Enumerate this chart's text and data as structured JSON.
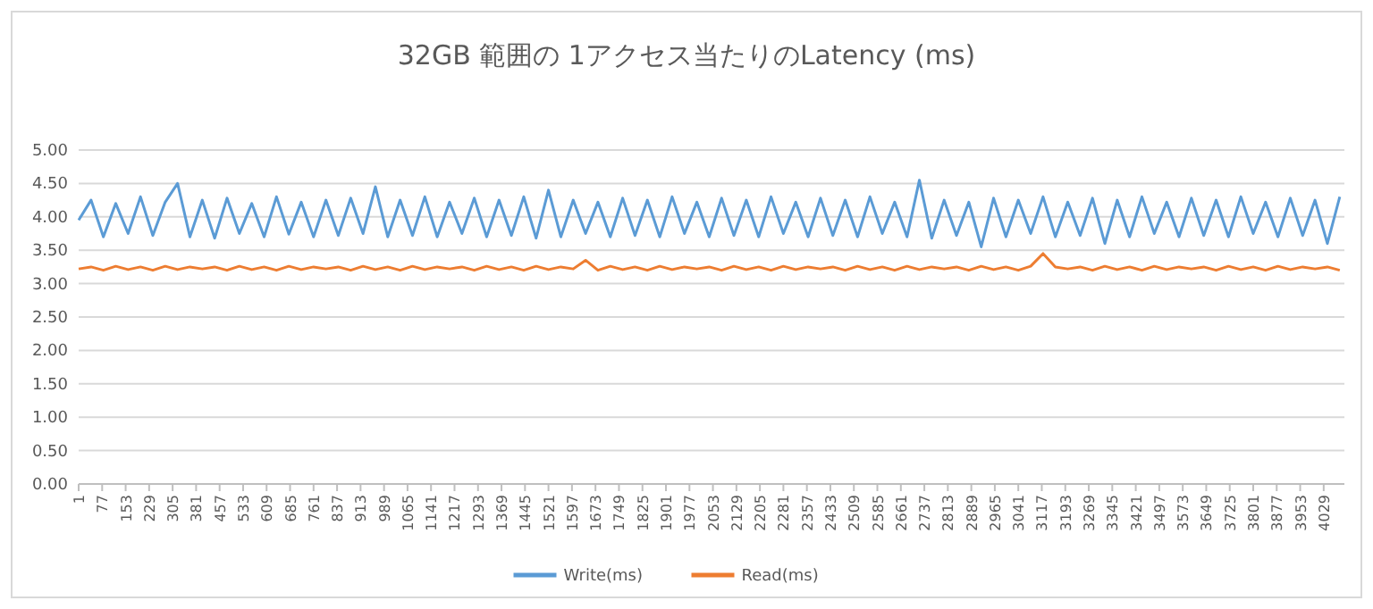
{
  "chart_data": {
    "type": "line",
    "title": "32GB 範囲の 1アクセス当たりのLatency (ms)",
    "x": [
      1,
      41,
      81,
      121,
      161,
      201,
      241,
      281,
      321,
      361,
      401,
      441,
      481,
      521,
      561,
      601,
      641,
      681,
      721,
      761,
      801,
      841,
      881,
      921,
      961,
      1001,
      1041,
      1081,
      1121,
      1161,
      1201,
      1241,
      1281,
      1321,
      1361,
      1401,
      1441,
      1481,
      1521,
      1561,
      1601,
      1641,
      1681,
      1721,
      1761,
      1801,
      1841,
      1881,
      1921,
      1961,
      2001,
      2041,
      2081,
      2121,
      2161,
      2201,
      2241,
      2281,
      2321,
      2361,
      2401,
      2441,
      2481,
      2521,
      2561,
      2601,
      2641,
      2681,
      2721,
      2761,
      2801,
      2841,
      2881,
      2921,
      2961,
      3001,
      3041,
      3081,
      3121,
      3161,
      3201,
      3241,
      3281,
      3321,
      3361,
      3401,
      3441,
      3481,
      3521,
      3561,
      3601,
      3641,
      3681,
      3721,
      3761,
      3801,
      3841,
      3881,
      3921,
      3961,
      4001,
      4041,
      4081
    ],
    "xlim": [
      1,
      4096
    ],
    "xticks": [
      1,
      77,
      153,
      229,
      305,
      381,
      457,
      533,
      609,
      685,
      761,
      837,
      913,
      989,
      1065,
      1141,
      1217,
      1293,
      1369,
      1445,
      1521,
      1597,
      1673,
      1749,
      1825,
      1901,
      1977,
      2053,
      2129,
      2205,
      2281,
      2357,
      2433,
      2509,
      2585,
      2661,
      2737,
      2813,
      2889,
      2965,
      3041,
      3117,
      3193,
      3269,
      3345,
      3421,
      3497,
      3573,
      3649,
      3725,
      3801,
      3877,
      3953,
      4029
    ],
    "ylim": [
      0,
      5
    ],
    "yticks": [
      {
        "value": 0,
        "label": "0.00"
      },
      {
        "value": 0.5,
        "label": "0.50"
      },
      {
        "value": 1,
        "label": "1.00"
      },
      {
        "value": 1.5,
        "label": "1.50"
      },
      {
        "value": 2,
        "label": "2.00"
      },
      {
        "value": 2.5,
        "label": "2.50"
      },
      {
        "value": 3,
        "label": "3.00"
      },
      {
        "value": 3.5,
        "label": "3.50"
      },
      {
        "value": 4,
        "label": "4.00"
      },
      {
        "value": 4.5,
        "label": "4.50"
      },
      {
        "value": 5,
        "label": "5.00"
      }
    ],
    "grid": "y",
    "legend": "bottom",
    "series": [
      {
        "name": "Write(ms)",
        "color": "#5b9bd5",
        "values": [
          3.95,
          4.25,
          3.7,
          4.2,
          3.75,
          4.3,
          3.72,
          4.22,
          4.5,
          3.7,
          4.25,
          3.68,
          4.28,
          3.75,
          4.2,
          3.7,
          4.3,
          3.74,
          4.22,
          3.7,
          4.25,
          3.72,
          4.28,
          3.75,
          4.45,
          3.7,
          4.25,
          3.72,
          4.3,
          3.7,
          4.22,
          3.75,
          4.28,
          3.7,
          4.25,
          3.72,
          4.3,
          3.68,
          4.4,
          3.7,
          4.25,
          3.75,
          4.22,
          3.7,
          4.28,
          3.72,
          4.25,
          3.7,
          4.3,
          3.75,
          4.22,
          3.7,
          4.28,
          3.72,
          4.25,
          3.7,
          4.3,
          3.75,
          4.22,
          3.7,
          4.28,
          3.72,
          4.25,
          3.7,
          4.3,
          3.75,
          4.22,
          3.7,
          4.55,
          3.68,
          4.25,
          3.72,
          4.22,
          3.55,
          4.28,
          3.7,
          4.25,
          3.75,
          4.3,
          3.7,
          4.22,
          3.72,
          4.28,
          3.6,
          4.25,
          3.7,
          4.3,
          3.75,
          4.22,
          3.7,
          4.28,
          3.72,
          4.25,
          3.7,
          4.3,
          3.75,
          4.22,
          3.7,
          4.28,
          3.72,
          4.25,
          3.6,
          4.3
        ]
      },
      {
        "name": "Read(ms)",
        "color": "#ed7d31",
        "values": [
          3.22,
          3.25,
          3.2,
          3.26,
          3.21,
          3.25,
          3.2,
          3.26,
          3.21,
          3.25,
          3.22,
          3.25,
          3.2,
          3.26,
          3.21,
          3.25,
          3.2,
          3.26,
          3.21,
          3.25,
          3.22,
          3.25,
          3.2,
          3.26,
          3.21,
          3.25,
          3.2,
          3.26,
          3.21,
          3.25,
          3.22,
          3.25,
          3.2,
          3.26,
          3.21,
          3.25,
          3.2,
          3.26,
          3.21,
          3.25,
          3.22,
          3.35,
          3.2,
          3.26,
          3.21,
          3.25,
          3.2,
          3.26,
          3.21,
          3.25,
          3.22,
          3.25,
          3.2,
          3.26,
          3.21,
          3.25,
          3.2,
          3.26,
          3.21,
          3.25,
          3.22,
          3.25,
          3.2,
          3.26,
          3.21,
          3.25,
          3.2,
          3.26,
          3.21,
          3.25,
          3.22,
          3.25,
          3.2,
          3.26,
          3.21,
          3.25,
          3.2,
          3.26,
          3.45,
          3.25,
          3.22,
          3.25,
          3.2,
          3.26,
          3.21,
          3.25,
          3.2,
          3.26,
          3.21,
          3.25,
          3.22,
          3.25,
          3.2,
          3.26,
          3.21,
          3.25,
          3.2,
          3.26,
          3.21,
          3.25,
          3.22,
          3.25,
          3.2
        ]
      }
    ]
  }
}
